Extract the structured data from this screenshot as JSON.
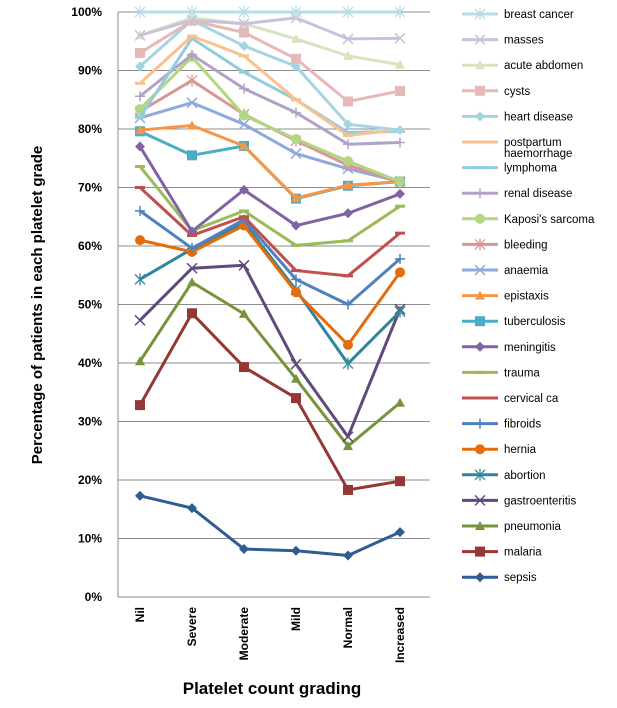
{
  "chart_data": {
    "type": "line",
    "title": "",
    "xlabel": "Platelet count grading",
    "ylabel": "Percentage of patients in each platelet grade",
    "ylim": [
      0,
      100
    ],
    "yticks": [
      "0%",
      "10%",
      "20%",
      "30%",
      "40%",
      "50%",
      "60%",
      "70%",
      "80%",
      "90%",
      "100%"
    ],
    "grid": true,
    "legend_position": "right",
    "categories": [
      "Nil",
      "Severe",
      "Moderate",
      "Mild",
      "Normal",
      "Increased"
    ],
    "series": [
      {
        "name": "breast cancer",
        "marker": "asterisk",
        "color": "#B7DEE8",
        "values": [
          100,
          100,
          100,
          100,
          100,
          100
        ]
      },
      {
        "name": "masses",
        "marker": "x",
        "color": "#CCC1DA",
        "values": [
          96,
          98.6,
          98,
          99,
          95.4,
          95.5
        ]
      },
      {
        "name": "acute abdomen",
        "marker": "triangle",
        "color": "#D7E4BD",
        "values": [
          96,
          99,
          98,
          95.4,
          92.5,
          91
        ]
      },
      {
        "name": "cysts",
        "marker": "square",
        "color": "#E6B9B8",
        "values": [
          93,
          98.5,
          96.5,
          92,
          84.7,
          86.5
        ]
      },
      {
        "name": "heart disease",
        "marker": "diamond",
        "color": "#A5D5E2",
        "values": [
          90.7,
          98.6,
          94.2,
          90.7,
          80.8,
          79.8
        ]
      },
      {
        "name": "postpartum haemorrhage",
        "marker": "dash",
        "color": "#FAC090",
        "values": [
          87.8,
          95.9,
          92.5,
          85,
          78.9,
          79.9
        ]
      },
      {
        "name": "lymphoma",
        "marker": "dash",
        "color": "#93CDDD",
        "values": [
          82,
          95.5,
          89.7,
          85,
          79.4,
          79.6
        ]
      },
      {
        "name": "renal disease",
        "marker": "plus",
        "color": "#B3A2C7",
        "values": [
          85.6,
          92.7,
          86.9,
          82.8,
          77.4,
          77.7
        ]
      },
      {
        "name": "Kaposi's sarcoma",
        "marker": "circle",
        "color": "#B3D680",
        "values": [
          83.4,
          92.3,
          82.3,
          78.3,
          74.5,
          71
        ]
      },
      {
        "name": "bleeding",
        "marker": "asterisk",
        "color": "#D99694",
        "values": [
          83,
          88.3,
          82.5,
          78,
          73.8,
          71
        ]
      },
      {
        "name": "anaemia",
        "marker": "x",
        "color": "#8EA9DB",
        "values": [
          81.9,
          84.5,
          80.8,
          75.8,
          73.2,
          71
        ]
      },
      {
        "name": "epistaxis",
        "marker": "triangle",
        "color": "#F79646",
        "values": [
          79.8,
          80.6,
          77.1,
          68.2,
          70.4,
          71
        ]
      },
      {
        "name": "tuberculosis",
        "marker": "square",
        "color": "#4BACC6",
        "values": [
          79.6,
          75.5,
          77.1,
          68.1,
          70.3,
          71
        ]
      },
      {
        "name": "meningitis",
        "marker": "diamond",
        "color": "#8064A2",
        "values": [
          77,
          62.5,
          69.6,
          63.5,
          65.6,
          68.9
        ]
      },
      {
        "name": "trauma",
        "marker": "dash",
        "color": "#9BBB59",
        "values": [
          73.6,
          62.6,
          66,
          60.1,
          60.9,
          66.8
        ]
      },
      {
        "name": "cervical ca",
        "marker": "dash",
        "color": "#C0504D",
        "values": [
          70,
          61.8,
          65,
          55.8,
          54.9,
          62.2
        ]
      },
      {
        "name": "fibroids",
        "marker": "plus",
        "color": "#4F81BD",
        "values": [
          66,
          59.6,
          64.5,
          54.3,
          50,
          57.8
        ]
      },
      {
        "name": "hernia",
        "marker": "circle",
        "color": "#E46C0A",
        "values": [
          61,
          59,
          63.5,
          52.1,
          43.1,
          55.5
        ]
      },
      {
        "name": "abortion",
        "marker": "asterisk",
        "color": "#31859C",
        "values": [
          54.3,
          59.5,
          64,
          52.5,
          39.9,
          48.8
        ]
      },
      {
        "name": "gastroenteritis",
        "marker": "x",
        "color": "#604A7B",
        "values": [
          47.3,
          56.2,
          56.7,
          39.8,
          27.4,
          49.2
        ]
      },
      {
        "name": "pneumonia",
        "marker": "triangle",
        "color": "#77933C",
        "values": [
          40.3,
          53.8,
          48.4,
          37.3,
          25.8,
          33.2
        ]
      },
      {
        "name": "malaria",
        "marker": "square",
        "color": "#953735",
        "values": [
          32.8,
          48.5,
          39.3,
          34,
          18.3,
          19.8
        ]
      },
      {
        "name": "sepsis",
        "marker": "diamond",
        "color": "#2E5C94",
        "values": [
          17.3,
          15.2,
          8.2,
          7.9,
          7.1,
          11.1
        ]
      }
    ]
  }
}
